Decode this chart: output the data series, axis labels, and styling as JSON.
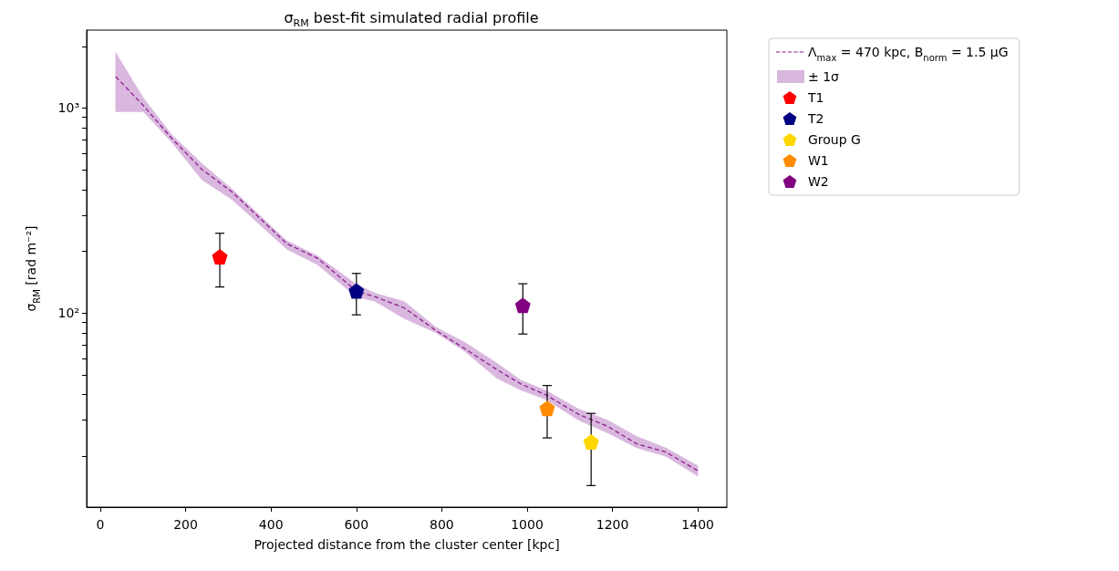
{
  "chart_data": {
    "type": "scatter",
    "title": "σ$_{RM}$ best-fit simulated radial profile",
    "xlabel": "Projected distance from the cluster center [kpc]",
    "ylabel": "σ$_{RM}$ [rad m⁻²]",
    "annotations": [
      "± 1σ"
    ],
    "xlim": [
      -32,
      1468
    ],
    "xticks": [
      0,
      200,
      400,
      600,
      800,
      1000,
      1200,
      1400
    ],
    "ylim": [
      11.3,
      2400
    ],
    "log": "y",
    "yticks": [
      {
        "value": 20,
        "label": null
      },
      {
        "value": 30,
        "label": null
      },
      {
        "value": 40,
        "label": null
      },
      {
        "value": 50,
        "label": null
      },
      {
        "value": 60,
        "label": null
      },
      {
        "value": 70,
        "label": null
      },
      {
        "value": 80,
        "label": null
      },
      {
        "value": 90,
        "label": null
      },
      {
        "value": 100,
        "label": "10²"
      },
      {
        "value": 200,
        "label": null
      },
      {
        "value": 300,
        "label": null
      },
      {
        "value": 400,
        "label": null
      },
      {
        "value": 500,
        "label": null
      },
      {
        "value": 600,
        "label": null
      },
      {
        "value": 700,
        "label": null
      },
      {
        "value": 800,
        "label": null
      },
      {
        "value": 900,
        "label": null
      },
      {
        "value": 1000,
        "label": "10³"
      },
      {
        "value": 2000,
        "label": null
      }
    ],
    "grid": false,
    "legend": "top right",
    "series": [
      {
        "name": "Λ$_{max}$ = 470 kpc, B$_{norm}$ = 1.5 μG",
        "type": "line",
        "line_style": "dashed",
        "color": "#8e1f8e",
        "x": [
          36,
          101,
          167,
          238,
          309,
          437,
          509,
          600,
          644,
          712,
          787,
          854,
          929,
          986,
          1043,
          1121,
          1189,
          1257,
          1325,
          1400
        ],
        "values": [
          1423,
          1028,
          713,
          502,
          389,
          218,
          185,
          128,
          120,
          106,
          82,
          67,
          53,
          45,
          40,
          32,
          28,
          23,
          21,
          17
        ],
        "lower": [
          960,
          960,
          683,
          447,
          357,
          205,
          172,
          120,
          114,
          94,
          80,
          65,
          48,
          42,
          38,
          30,
          26,
          22,
          20,
          16
        ],
        "upper": [
          1866,
          1119,
          743,
          536,
          402,
          225,
          190,
          138,
          125,
          114,
          85,
          72,
          57,
          47,
          42,
          34,
          30,
          25,
          22,
          18
        ]
      },
      {
        "name": "T1",
        "color": "#ff0000",
        "x": [
          280
        ],
        "values": [
          188
        ],
        "errors": [
          [
            134,
            245
          ]
        ]
      },
      {
        "name": "T2",
        "color": "#000080",
        "x": [
          600
        ],
        "values": [
          128
        ],
        "errors": [
          [
            98,
            156
          ]
        ]
      },
      {
        "name": "Group G",
        "color": "#ffd700",
        "x": [
          1150
        ],
        "values": [
          23.5
        ],
        "errors": [
          [
            14.4,
            32.4
          ]
        ]
      },
      {
        "name": "W1",
        "color": "#ff8c00",
        "x": [
          1047
        ],
        "values": [
          34.3
        ],
        "errors": [
          [
            24.6,
            44.3
          ]
        ]
      },
      {
        "name": "W2",
        "color": "#800080",
        "x": [
          990
        ],
        "values": [
          109
        ],
        "errors": [
          [
            79,
            139
          ]
        ]
      }
    ]
  }
}
